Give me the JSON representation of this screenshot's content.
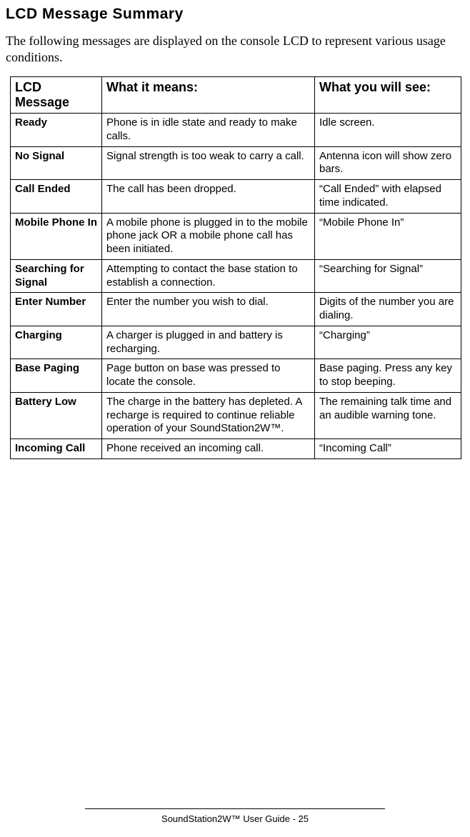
{
  "title": "LCD Message Summary",
  "intro": "The following messages are displayed on the console LCD to represent various usage conditions.",
  "table": {
    "headers": {
      "c1": "LCD Message",
      "c2": "What it means:",
      "c3": "What you will see:"
    },
    "rows": [
      {
        "msg": "Ready",
        "means": "Phone is in idle state and ready to make calls.",
        "see": "Idle screen."
      },
      {
        "msg": "No Signal",
        "means": "Signal strength is too weak to carry a call.",
        "see": "Antenna icon will show zero bars."
      },
      {
        "msg": "Call Ended",
        "means": "The call has been dropped.",
        "see": "“Call Ended” with elapsed time indicated."
      },
      {
        "msg": "Mobile Phone In",
        "means": "A mobile phone is plugged in to the mobile phone jack OR a mobile phone call has been initiated.",
        "see": "“Mobile Phone In”"
      },
      {
        "msg": "Searching for Signal",
        "means": "Attempting to contact the base station to establish a connection.",
        "see": "“Searching for Signal”"
      },
      {
        "msg": "Enter Number",
        "means": "Enter the number you wish to dial.",
        "see": "Digits of the number you are dialing."
      },
      {
        "msg": "Charging",
        "means": "A charger is plugged in and battery is recharging.",
        "see": "“Charging”"
      },
      {
        "msg": "Base Paging",
        "means": "Page button on base was pressed to locate the console.",
        "see": "Base paging.  Press any key to stop beeping."
      },
      {
        "msg": "Battery Low",
        "means": "The charge in the battery has depleted.  A recharge is required to continue reliable operation of your SoundStation2W™.",
        "see": "The remaining talk time and an audible warning tone."
      },
      {
        "msg": "Incoming Call",
        "means": "Phone received an incoming call.",
        "see": "“Incoming Call”"
      }
    ]
  },
  "footer": "SoundStation2W™ User Guide - 25"
}
